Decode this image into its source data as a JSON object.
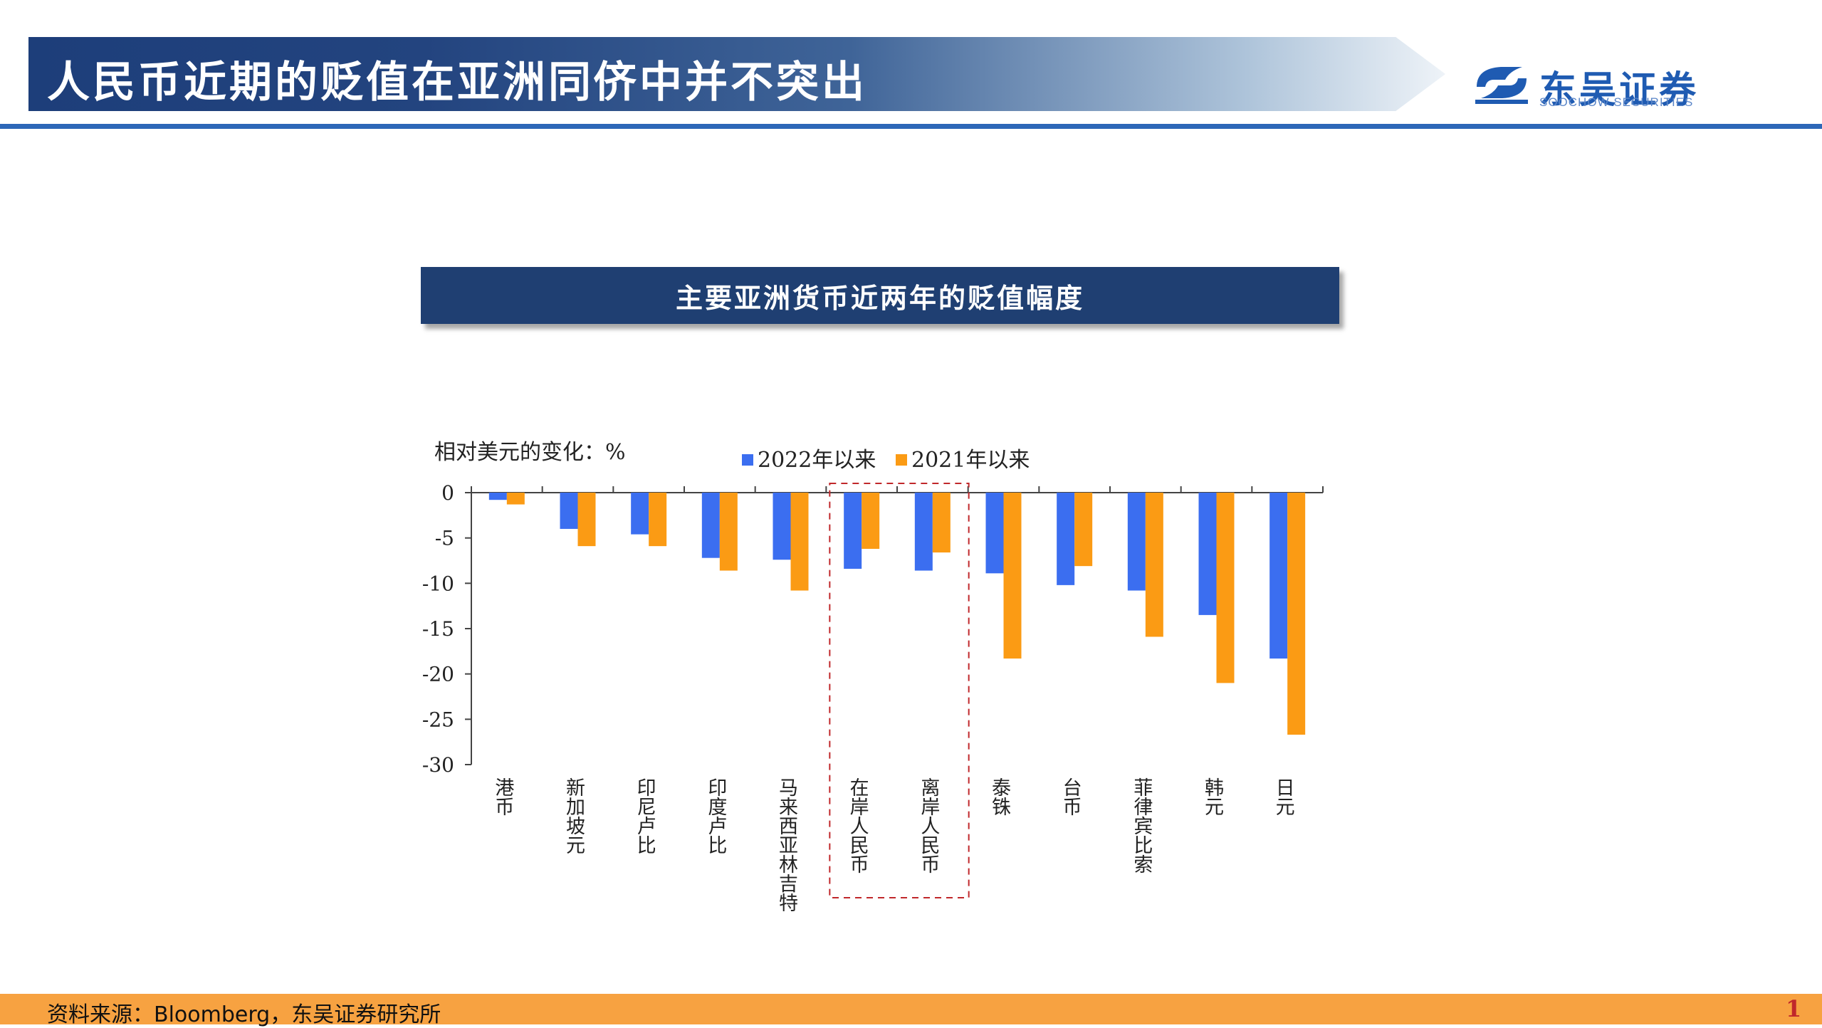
{
  "slide": {
    "title": "人民币近期的贬值在亚洲同侪中并不突出",
    "page_number": "1"
  },
  "logo": {
    "name_cn": "东吴证券",
    "name_en": "SOOCHOW SECURITIES"
  },
  "chart_header": "主要亚洲货币近两年的贬值幅度",
  "footer": {
    "source": "资料来源：Bloomberg，东吴证券研究所"
  },
  "colors": {
    "banner": "#1f3f72",
    "rule": "#2d67b8",
    "footer": "#f7a241",
    "series_2022": "#3b6ef0",
    "series_2021": "#fb9b14",
    "highlight_box": "#c0282b"
  },
  "chart_data": {
    "type": "bar",
    "ylabel": "相对美元的变化：%",
    "ylim": [
      -30,
      0
    ],
    "yticks": [
      0,
      -5,
      -10,
      -15,
      -20,
      -25,
      -30
    ],
    "ytick_labels": [
      "0",
      "-5",
      "-10",
      "-15",
      "-20",
      "-25",
      "-30"
    ],
    "legend_position": "top",
    "grid": false,
    "categories": [
      "港币",
      "新加坡元",
      "印尼卢比",
      "印度卢比",
      "马来西亚林吉特",
      "在岸人民币",
      "离岸人民币",
      "泰铢",
      "台币",
      "菲律宾比索",
      "韩元",
      "日元"
    ],
    "series": [
      {
        "name": "2022年以来",
        "color": "#3b6ef0",
        "values": [
          -0.8,
          -4.0,
          -4.6,
          -7.2,
          -7.4,
          -8.4,
          -8.6,
          -8.9,
          -10.2,
          -10.8,
          -13.5,
          -18.3
        ]
      },
      {
        "name": "2021年以来",
        "color": "#fb9b14",
        "values": [
          -1.3,
          -5.9,
          -5.9,
          -8.6,
          -10.8,
          -6.2,
          -6.6,
          -18.3,
          -8.1,
          -15.9,
          -21.0,
          -26.7
        ]
      }
    ],
    "highlighted_categories": [
      "在岸人民币",
      "离岸人民币"
    ]
  }
}
